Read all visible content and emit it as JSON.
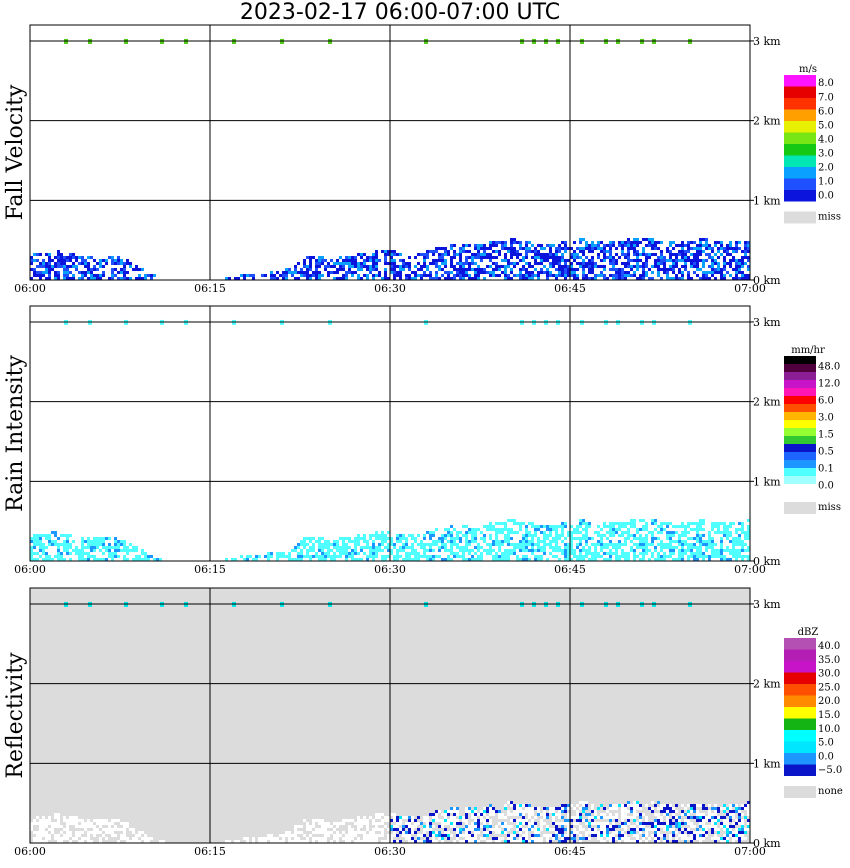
{
  "title": "2023-02-17   06:00-07:00 UTC",
  "chart_data": [
    {
      "type": "heatmap",
      "ylabel": "Fall Velocity",
      "x_ticks": [
        "06:00",
        "06:15",
        "06:30",
        "06:45",
        "07:00"
      ],
      "y_ticks": [
        "0 km",
        "1 km",
        "2 km",
        "3 km"
      ],
      "ylim_km": [
        0,
        3.2
      ],
      "background": "#ffffff",
      "grid": true,
      "legend": {
        "unit": "m/s",
        "colors": [
          "#0a14dc",
          "#1e50ff",
          "#0aa0ff",
          "#00e6b4",
          "#14c814",
          "#78e614",
          "#e6f000",
          "#ffa000",
          "#ff3200",
          "#e60000",
          "#ff14ff"
        ],
        "labels": [
          "8.0",
          "7.0",
          "6.0",
          "5.0",
          "4.0",
          "3.0",
          "2.0",
          "1.0",
          "0.0"
        ],
        "missing_label": "miss"
      },
      "echo_profile": {
        "time_min": [
          0,
          2,
          4,
          6,
          8,
          10,
          12,
          15,
          18,
          21,
          23,
          25,
          27,
          29,
          30,
          32,
          34,
          36,
          38,
          40,
          42,
          44,
          46,
          48,
          50,
          52,
          54,
          56,
          58,
          60
        ],
        "top_km": [
          0.3,
          0.35,
          0.3,
          0.3,
          0.25,
          0.05,
          0,
          0,
          0.05,
          0.1,
          0.3,
          0.25,
          0.3,
          0.35,
          0.35,
          0.3,
          0.4,
          0.45,
          0.45,
          0.5,
          0.45,
          0.45,
          0.5,
          0.45,
          0.5,
          0.5,
          0.45,
          0.5,
          0.45,
          0.5
        ]
      },
      "upper_layer_km": 3.0,
      "upper_layer_color": "#50c814"
    },
    {
      "type": "heatmap",
      "ylabel": "Rain Intensity",
      "x_ticks": [
        "06:00",
        "06:15",
        "06:30",
        "06:45",
        "07:00"
      ],
      "y_ticks": [
        "0 km",
        "1 km",
        "2 km",
        "3 km"
      ],
      "ylim_km": [
        0,
        3.2
      ],
      "background": "#ffffff",
      "grid": true,
      "legend": {
        "unit": "mm/hr",
        "colors": [
          "#dcdcdc",
          "#ffffff",
          "#a0ffff",
          "#50ffff",
          "#1e96ff",
          "#1e64ff",
          "#0a14c8",
          "#32c832",
          "#96ff32",
          "#ffff00",
          "#ffb400",
          "#ff5000",
          "#ff0000",
          "#ff14b4",
          "#c814c8",
          "#8c1e96",
          "#50003c",
          "#000000"
        ],
        "labels": [
          "48.0",
          "12.0",
          "6.0",
          "3.0",
          "1.5",
          "0.5",
          "0.1",
          "0.0"
        ],
        "missing_label": "miss"
      },
      "echo_profile": {
        "time_min": [
          0,
          2,
          4,
          6,
          8,
          10,
          12,
          15,
          18,
          21,
          23,
          25,
          27,
          29,
          30,
          32,
          34,
          36,
          38,
          40,
          42,
          44,
          46,
          48,
          50,
          52,
          54,
          56,
          58,
          60
        ],
        "top_km": [
          0.3,
          0.35,
          0.3,
          0.3,
          0.25,
          0.05,
          0,
          0,
          0.05,
          0.1,
          0.3,
          0.25,
          0.3,
          0.35,
          0.35,
          0.3,
          0.4,
          0.45,
          0.45,
          0.5,
          0.45,
          0.45,
          0.5,
          0.45,
          0.5,
          0.5,
          0.45,
          0.5,
          0.45,
          0.5
        ]
      },
      "upper_layer_km": 3.0,
      "upper_layer_color": "#50ffff"
    },
    {
      "type": "heatmap",
      "ylabel": "Reflectivity",
      "x_ticks": [
        "06:00",
        "06:15",
        "06:30",
        "06:45",
        "07:00"
      ],
      "y_ticks": [
        "0 km",
        "1 km",
        "2 km",
        "3 km"
      ],
      "ylim_km": [
        0,
        3.2
      ],
      "background": "#dcdcdc",
      "grid": true,
      "legend": {
        "unit": "dBZ",
        "colors": [
          "#dcdcdc",
          "#0a14c8",
          "#1e96ff",
          "#00e6ff",
          "#00ffff",
          "#14b414",
          "#ffff00",
          "#ff8c00",
          "#ff5000",
          "#e60000",
          "#c814c8",
          "#b41eb4",
          "#b450b4"
        ],
        "labels": [
          "40.0",
          "35.0",
          "30.0",
          "25.0",
          "20.0",
          "15.0",
          "10.0",
          "5.0",
          "0.0",
          "−5.0"
        ],
        "missing_label": "none"
      },
      "echo_profile": {
        "time_min": [
          0,
          2,
          4,
          6,
          8,
          10,
          12,
          15,
          18,
          21,
          23,
          25,
          27,
          29,
          30,
          32,
          34,
          36,
          38,
          40,
          42,
          44,
          46,
          48,
          50,
          52,
          54,
          56,
          58,
          60
        ],
        "top_km": [
          0.3,
          0.35,
          0.3,
          0.3,
          0.25,
          0.05,
          0,
          0,
          0.05,
          0.1,
          0.3,
          0.25,
          0.3,
          0.35,
          0.35,
          0.3,
          0.4,
          0.45,
          0.45,
          0.5,
          0.45,
          0.45,
          0.5,
          0.45,
          0.5,
          0.5,
          0.45,
          0.5,
          0.45,
          0.5
        ]
      },
      "upper_layer_km": 3.0,
      "upper_layer_color": "#00e6e6"
    }
  ]
}
